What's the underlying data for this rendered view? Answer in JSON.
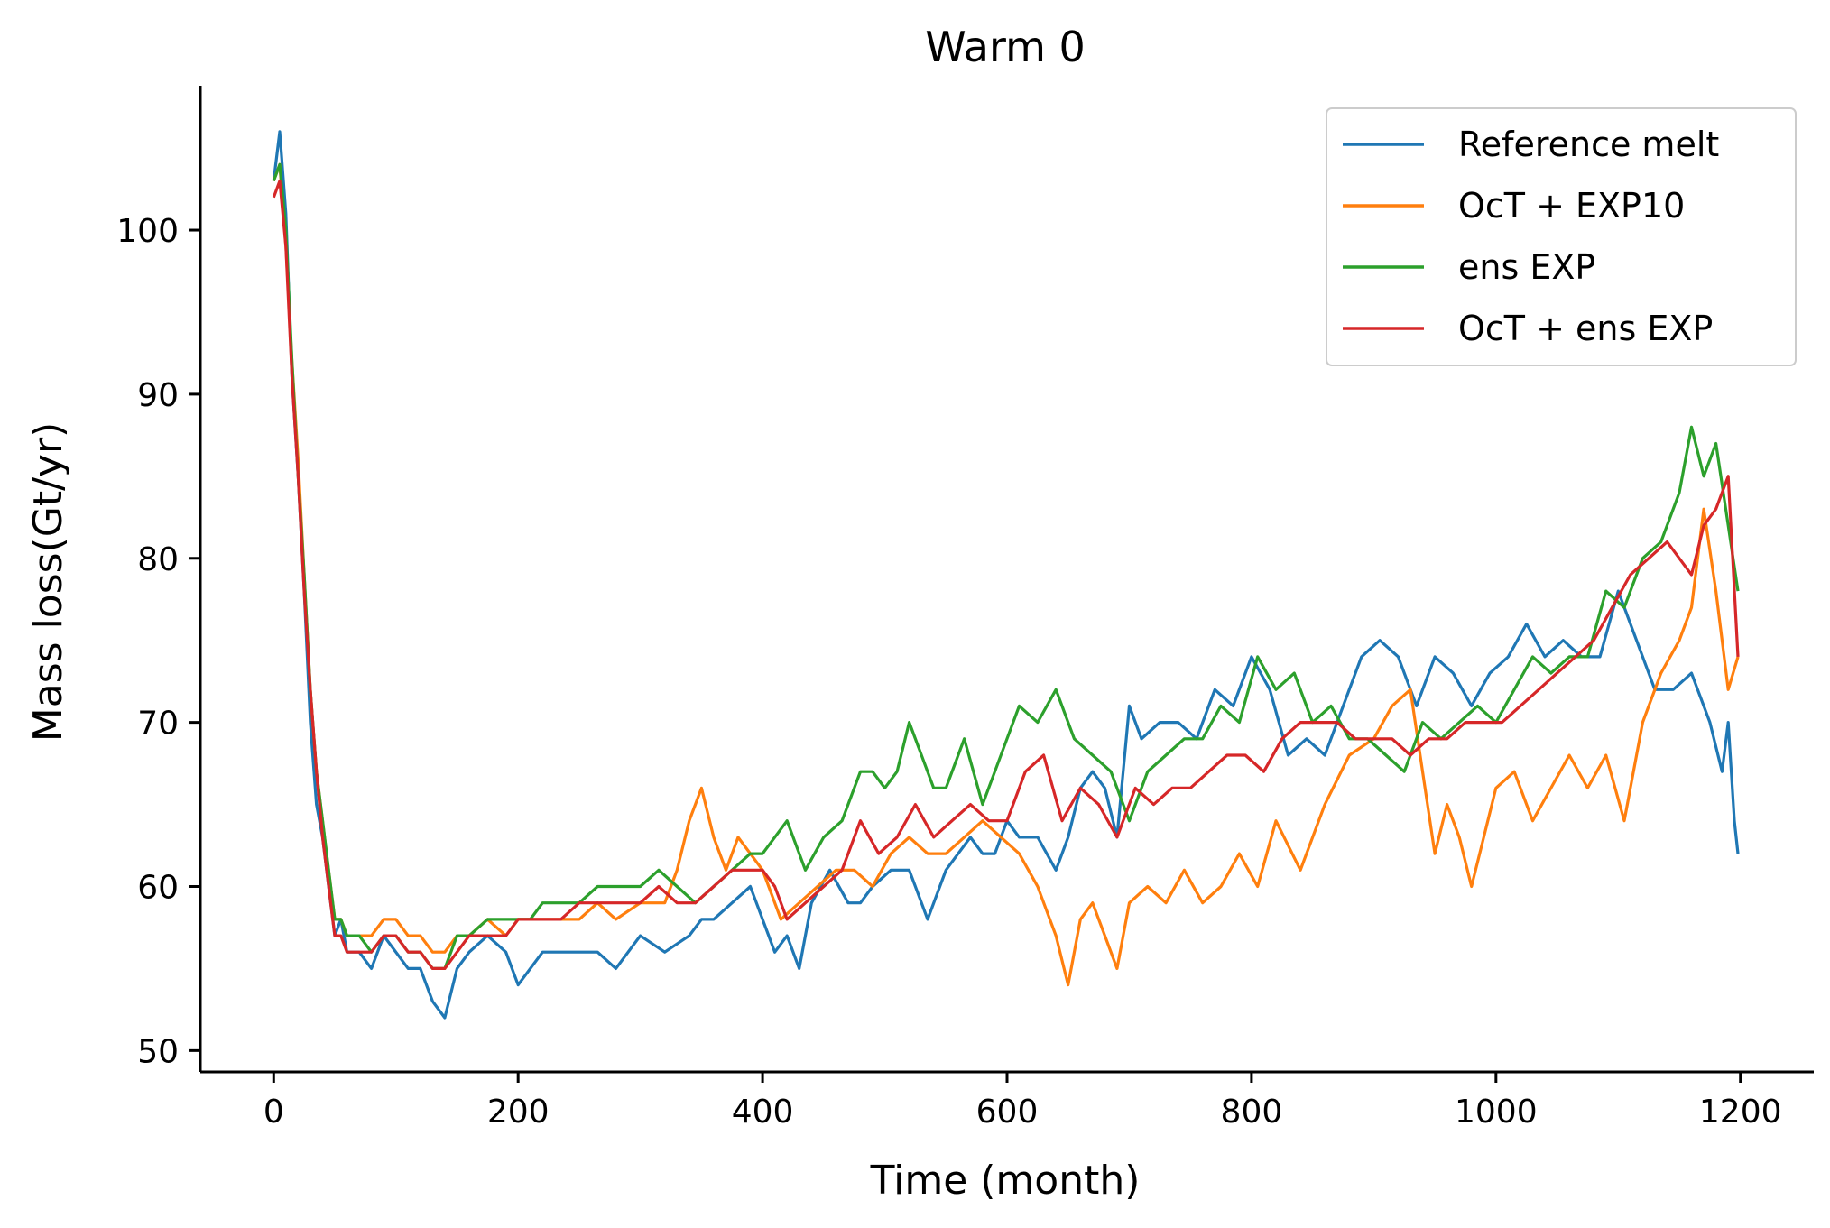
{
  "chart_data": {
    "type": "line",
    "title": "Warm 0",
    "xlabel": "Time (month)",
    "ylabel": "Mass loss(Gt/yr)",
    "xlim": [
      -60,
      1260
    ],
    "ylim": [
      48.7,
      108.8
    ],
    "xticks": [
      0,
      200,
      400,
      600,
      800,
      1000,
      1200
    ],
    "yticks": [
      50,
      60,
      70,
      80,
      90,
      100
    ],
    "grid": false,
    "legend_position": "top-right",
    "series": [
      {
        "name": "Reference melt",
        "color": "#1f77b4",
        "x": [
          0,
          5,
          10,
          15,
          20,
          25,
          30,
          35,
          40,
          45,
          50,
          55,
          60,
          70,
          80,
          90,
          100,
          110,
          120,
          130,
          140,
          150,
          160,
          175,
          190,
          200,
          210,
          220,
          235,
          250,
          265,
          280,
          300,
          320,
          340,
          350,
          360,
          375,
          390,
          400,
          410,
          420,
          430,
          440,
          455,
          470,
          480,
          490,
          505,
          520,
          535,
          550,
          560,
          570,
          580,
          590,
          600,
          610,
          625,
          640,
          650,
          660,
          670,
          680,
          690,
          700,
          710,
          725,
          740,
          755,
          770,
          785,
          800,
          815,
          830,
          845,
          860,
          875,
          890,
          905,
          920,
          935,
          950,
          965,
          980,
          995,
          1010,
          1025,
          1040,
          1055,
          1070,
          1085,
          1100,
          1115,
          1130,
          1145,
          1160,
          1175,
          1185,
          1190,
          1195,
          1198
        ],
        "y": [
          103,
          106,
          101,
          91,
          85,
          78,
          70,
          65,
          63,
          60,
          57,
          58,
          56,
          56,
          55,
          57,
          56,
          55,
          55,
          53,
          52,
          55,
          56,
          57,
          56,
          54,
          55,
          56,
          56,
          56,
          56,
          55,
          57,
          56,
          57,
          58,
          58,
          59,
          60,
          58,
          56,
          57,
          55,
          59,
          61,
          59,
          59,
          60,
          61,
          61,
          58,
          61,
          62,
          63,
          62,
          62,
          64,
          63,
          63,
          61,
          63,
          66,
          67,
          66,
          63,
          71,
          69,
          70,
          70,
          69,
          72,
          71,
          74,
          72,
          68,
          69,
          68,
          71,
          74,
          75,
          74,
          71,
          74,
          73,
          71,
          73,
          74,
          76,
          74,
          75,
          74,
          74,
          78,
          75,
          72,
          72,
          73,
          70,
          67,
          70,
          64,
          62
        ]
      },
      {
        "name": "OcT + EXP10",
        "color": "#ff7f0e",
        "x": [
          0,
          5,
          10,
          15,
          20,
          25,
          30,
          35,
          40,
          45,
          50,
          55,
          60,
          70,
          80,
          90,
          100,
          110,
          120,
          130,
          140,
          150,
          160,
          175,
          190,
          200,
          210,
          220,
          235,
          250,
          265,
          280,
          300,
          320,
          330,
          340,
          350,
          360,
          370,
          380,
          390,
          400,
          415,
          430,
          445,
          460,
          475,
          490,
          505,
          520,
          535,
          550,
          565,
          580,
          595,
          610,
          625,
          640,
          650,
          660,
          670,
          680,
          690,
          700,
          715,
          730,
          745,
          760,
          775,
          790,
          805,
          820,
          840,
          860,
          880,
          900,
          915,
          930,
          940,
          950,
          960,
          970,
          980,
          990,
          1000,
          1015,
          1030,
          1045,
          1060,
          1075,
          1090,
          1105,
          1120,
          1135,
          1150,
          1160,
          1170,
          1180,
          1190,
          1198
        ],
        "y": [
          103,
          104,
          99,
          92,
          86,
          79,
          72,
          67,
          64,
          61,
          58,
          58,
          57,
          57,
          57,
          58,
          58,
          57,
          57,
          56,
          56,
          57,
          57,
          58,
          57,
          58,
          58,
          58,
          58,
          58,
          59,
          58,
          59,
          59,
          61,
          64,
          66,
          63,
          61,
          63,
          62,
          61,
          58,
          59,
          60,
          61,
          61,
          60,
          62,
          63,
          62,
          62,
          63,
          64,
          63,
          62,
          60,
          57,
          54,
          58,
          59,
          57,
          55,
          59,
          60,
          59,
          61,
          59,
          60,
          62,
          60,
          64,
          61,
          65,
          68,
          69,
          71,
          72,
          67,
          62,
          65,
          63,
          60,
          63,
          66,
          67,
          64,
          66,
          68,
          66,
          68,
          64,
          70,
          73,
          75,
          77,
          83,
          78,
          72,
          74
        ]
      },
      {
        "name": "ens EXP",
        "color": "#2ca02c",
        "x": [
          0,
          5,
          10,
          15,
          20,
          25,
          30,
          35,
          40,
          45,
          50,
          55,
          60,
          70,
          80,
          90,
          100,
          110,
          120,
          130,
          140,
          150,
          160,
          175,
          190,
          200,
          210,
          220,
          235,
          250,
          265,
          280,
          300,
          315,
          330,
          345,
          360,
          375,
          390,
          400,
          410,
          420,
          435,
          450,
          465,
          480,
          490,
          500,
          510,
          520,
          530,
          540,
          550,
          565,
          580,
          595,
          610,
          625,
          640,
          655,
          670,
          685,
          700,
          715,
          730,
          745,
          760,
          775,
          790,
          805,
          820,
          835,
          850,
          865,
          880,
          895,
          910,
          925,
          940,
          955,
          970,
          985,
          1000,
          1015,
          1030,
          1045,
          1060,
          1075,
          1090,
          1105,
          1120,
          1135,
          1150,
          1160,
          1170,
          1180,
          1190,
          1198
        ],
        "y": [
          103,
          104,
          100,
          92,
          85,
          79,
          72,
          67,
          64,
          61,
          58,
          58,
          57,
          57,
          56,
          57,
          57,
          56,
          56,
          55,
          55,
          57,
          57,
          58,
          58,
          58,
          58,
          59,
          59,
          59,
          60,
          60,
          60,
          61,
          60,
          59,
          60,
          61,
          62,
          62,
          63,
          64,
          61,
          63,
          64,
          67,
          67,
          66,
          67,
          70,
          68,
          66,
          66,
          69,
          65,
          68,
          71,
          70,
          72,
          69,
          68,
          67,
          64,
          67,
          68,
          69,
          69,
          71,
          70,
          74,
          72,
          73,
          70,
          71,
          69,
          69,
          68,
          67,
          70,
          69,
          70,
          71,
          70,
          72,
          74,
          73,
          74,
          74,
          78,
          77,
          80,
          81,
          84,
          88,
          85,
          87,
          82,
          78
        ]
      },
      {
        "name": "OcT + ens EXP",
        "color": "#d62728",
        "x": [
          0,
          5,
          10,
          15,
          20,
          25,
          30,
          35,
          40,
          45,
          50,
          55,
          60,
          70,
          80,
          90,
          100,
          110,
          120,
          130,
          140,
          150,
          160,
          175,
          190,
          200,
          210,
          220,
          235,
          250,
          265,
          280,
          300,
          315,
          330,
          345,
          360,
          375,
          390,
          400,
          410,
          420,
          435,
          450,
          465,
          480,
          495,
          510,
          525,
          540,
          555,
          570,
          585,
          600,
          615,
          630,
          645,
          660,
          675,
          690,
          705,
          720,
          735,
          750,
          765,
          780,
          795,
          810,
          825,
          840,
          855,
          870,
          885,
          900,
          915,
          930,
          945,
          960,
          975,
          990,
          1005,
          1020,
          1035,
          1050,
          1065,
          1080,
          1095,
          1110,
          1125,
          1140,
          1150,
          1160,
          1170,
          1180,
          1190,
          1198
        ],
        "y": [
          102,
          103,
          99,
          91,
          85,
          78,
          72,
          67,
          63,
          60,
          57,
          57,
          56,
          56,
          56,
          57,
          57,
          56,
          56,
          55,
          55,
          56,
          57,
          57,
          57,
          58,
          58,
          58,
          58,
          59,
          59,
          59,
          59,
          60,
          59,
          59,
          60,
          61,
          61,
          61,
          60,
          58,
          59,
          60,
          61,
          64,
          62,
          63,
          65,
          63,
          64,
          65,
          64,
          64,
          67,
          68,
          64,
          66,
          65,
          63,
          66,
          65,
          66,
          66,
          67,
          68,
          68,
          67,
          69,
          70,
          70,
          70,
          69,
          69,
          69,
          68,
          69,
          69,
          70,
          70,
          70,
          71,
          72,
          73,
          74,
          75,
          77,
          79,
          80,
          81,
          80,
          79,
          82,
          83,
          85,
          74
        ]
      }
    ]
  }
}
